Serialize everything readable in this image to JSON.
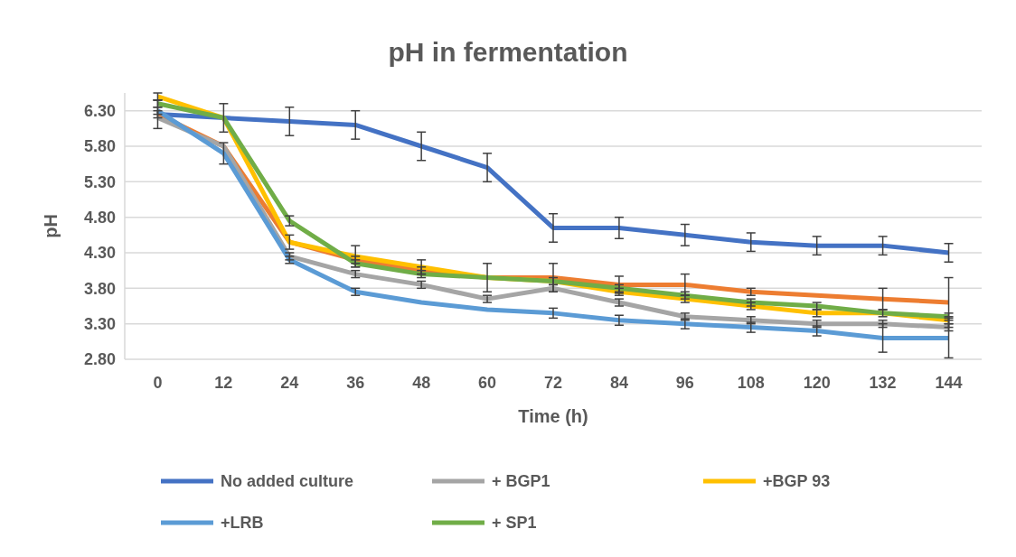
{
  "chart_data": {
    "type": "line",
    "title": "pH in fermentation",
    "xlabel": "Time (h)",
    "ylabel": "pH",
    "categories": [
      "0",
      "12",
      "24",
      "36",
      "48",
      "60",
      "72",
      "84",
      "96",
      "108",
      "120",
      "132",
      "144"
    ],
    "ylim": [
      2.8,
      6.55
    ],
    "yticks": [
      {
        "value": 2.8,
        "label": "2.80"
      },
      {
        "value": 3.3,
        "label": "3.30"
      },
      {
        "value": 3.8,
        "label": "3.80"
      },
      {
        "value": 4.3,
        "label": "4.30"
      },
      {
        "value": 4.8,
        "label": "4.80"
      },
      {
        "value": 5.3,
        "label": "5.30"
      },
      {
        "value": 5.8,
        "label": "5.80"
      },
      {
        "value": 6.3,
        "label": "6.30"
      }
    ],
    "grid": "y",
    "legend": "bottom",
    "marker": "none",
    "line_style": "solid",
    "series": [
      {
        "name": "No added culture",
        "color": "#4472c4",
        "values": [
          6.25,
          6.2,
          6.15,
          6.1,
          5.8,
          5.5,
          4.65,
          4.65,
          4.55,
          4.45,
          4.4,
          4.4,
          4.3
        ],
        "errors": [
          0.2,
          0.2,
          0.2,
          0.2,
          0.2,
          0.2,
          0.2,
          0.15,
          0.15,
          0.13,
          0.13,
          0.13,
          0.13
        ]
      },
      {
        "color": "#ed7d31",
        "values": [
          6.25,
          5.8,
          4.45,
          4.2,
          4.05,
          3.95,
          3.95,
          3.85,
          3.85,
          3.75,
          3.7,
          3.65,
          3.6
        ],
        "errors": [
          0.05,
          null,
          null,
          0.05,
          0.05,
          0.2,
          0.2,
          0.12,
          0.15,
          0.05,
          null,
          0.15,
          0.35
        ]
      },
      {
        "name": "+ BGP1",
        "color": "#a5a5a5",
        "values": [
          6.2,
          5.8,
          4.25,
          4.0,
          3.85,
          3.65,
          3.8,
          3.6,
          3.4,
          3.35,
          3.3,
          3.3,
          3.25
        ],
        "errors": [
          null,
          null,
          0.05,
          0.05,
          0.05,
          0.05,
          0.05,
          0.05,
          0.05,
          0.05,
          0.05,
          0.05,
          0.05
        ]
      },
      {
        "name": "+BGP 93",
        "color": "#ffc000",
        "values": [
          6.5,
          6.2,
          4.45,
          4.25,
          4.1,
          3.95,
          3.9,
          3.75,
          3.65,
          3.55,
          3.45,
          3.45,
          3.35
        ],
        "errors": [
          0.05,
          null,
          0.1,
          0.15,
          0.1,
          null,
          null,
          0.05,
          0.05,
          0.05,
          0.05,
          null,
          0.05
        ]
      },
      {
        "name": "+LRB",
        "color": "#5b9bd5",
        "values": [
          6.3,
          5.7,
          4.2,
          3.75,
          3.6,
          3.5,
          3.45,
          3.35,
          3.3,
          3.25,
          3.2,
          3.1,
          3.1
        ],
        "errors": [
          0.05,
          0.15,
          0.05,
          0.05,
          null,
          null,
          0.07,
          0.07,
          0.07,
          0.07,
          0.07,
          0.2,
          0.28
        ]
      },
      {
        "name": "+ SP1",
        "color": "#70ad47",
        "values": [
          6.4,
          6.2,
          4.75,
          4.15,
          4.0,
          3.95,
          3.9,
          3.8,
          3.7,
          3.6,
          3.55,
          3.45,
          3.4
        ],
        "errors": [
          0.05,
          null,
          0.07,
          0.05,
          0.05,
          null,
          0.05,
          0.05,
          0.05,
          0.05,
          0.05,
          0.05,
          0.05
        ]
      }
    ]
  }
}
